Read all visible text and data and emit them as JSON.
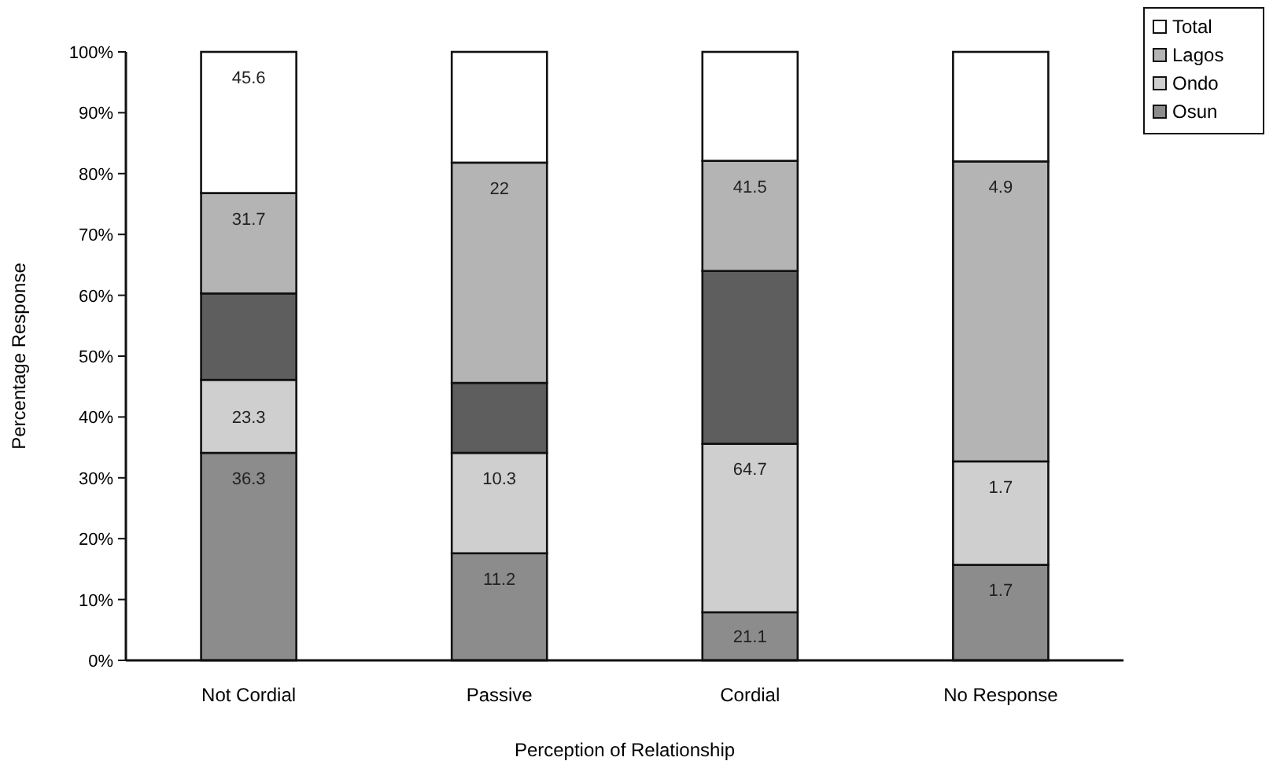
{
  "chart_data": {
    "type": "bar",
    "stacked": true,
    "xlabel": "Perception of Relationship",
    "ylabel": "Percentage Response",
    "categories": [
      "Not Cordial",
      "Passive",
      "Cordial",
      "No Response"
    ],
    "ylim": [
      0,
      100
    ],
    "yticks": [
      {
        "value": 0,
        "label": "0%"
      },
      {
        "value": 10,
        "label": "10%"
      },
      {
        "value": 20,
        "label": "20%"
      },
      {
        "value": 30,
        "label": "30%"
      },
      {
        "value": 40,
        "label": "40%"
      },
      {
        "value": 50,
        "label": "50%"
      },
      {
        "value": 60,
        "label": "60%"
      },
      {
        "value": 70,
        "label": "70%"
      },
      {
        "value": 80,
        "label": "80%"
      },
      {
        "value": 90,
        "label": "90%"
      },
      {
        "value": 100,
        "label": "100%"
      }
    ],
    "legend": "top right",
    "series": [
      {
        "name": "Osun",
        "color": "#8c8c8c",
        "values": [
          34.1,
          17.6,
          7.9,
          15.7
        ]
      },
      {
        "name": "Ondo",
        "color": "#cfcfcf",
        "values": [
          12.0,
          16.5,
          27.7,
          17.0
        ]
      },
      {
        "color": "#5e5e5e",
        "values": [
          14.2,
          11.5,
          28.4,
          0
        ]
      },
      {
        "name": "Lagos",
        "color": "#b4b4b4",
        "values": [
          16.5,
          36.2,
          18.1,
          49.3
        ]
      },
      {
        "name": "Total",
        "color": "#ffffff",
        "values": [
          23.2,
          18.2,
          17.9,
          18.0
        ]
      }
    ],
    "annotations": [
      {
        "text": "36.3",
        "x": "Not Cordial",
        "y": 34.1
      },
      {
        "text": "23.3",
        "x": "Not Cordial",
        "y": 46.1
      },
      {
        "text": "31.7",
        "x": "Not Cordial",
        "y": 76.8
      },
      {
        "text": "45.6",
        "x": "Not Cordial",
        "y": 100
      },
      {
        "text": "11.2",
        "x": "Passive",
        "y": 17.6
      },
      {
        "text": "10.3",
        "x": "Passive",
        "y": 34.1
      },
      {
        "text": "22",
        "x": "Passive",
        "y": 81.8
      },
      {
        "text": "21.1",
        "x": "Cordial",
        "y": 7.9
      },
      {
        "text": "64.7",
        "x": "Cordial",
        "y": 35.6
      },
      {
        "text": "41.5",
        "x": "Cordial",
        "y": 82.1
      },
      {
        "text": "1.7",
        "x": "No Response",
        "y": 15.7
      },
      {
        "text": "1.7",
        "x": "No Response",
        "y": 32.7
      },
      {
        "text": "4.9",
        "x": "No Response",
        "y": 82.0
      }
    ]
  }
}
